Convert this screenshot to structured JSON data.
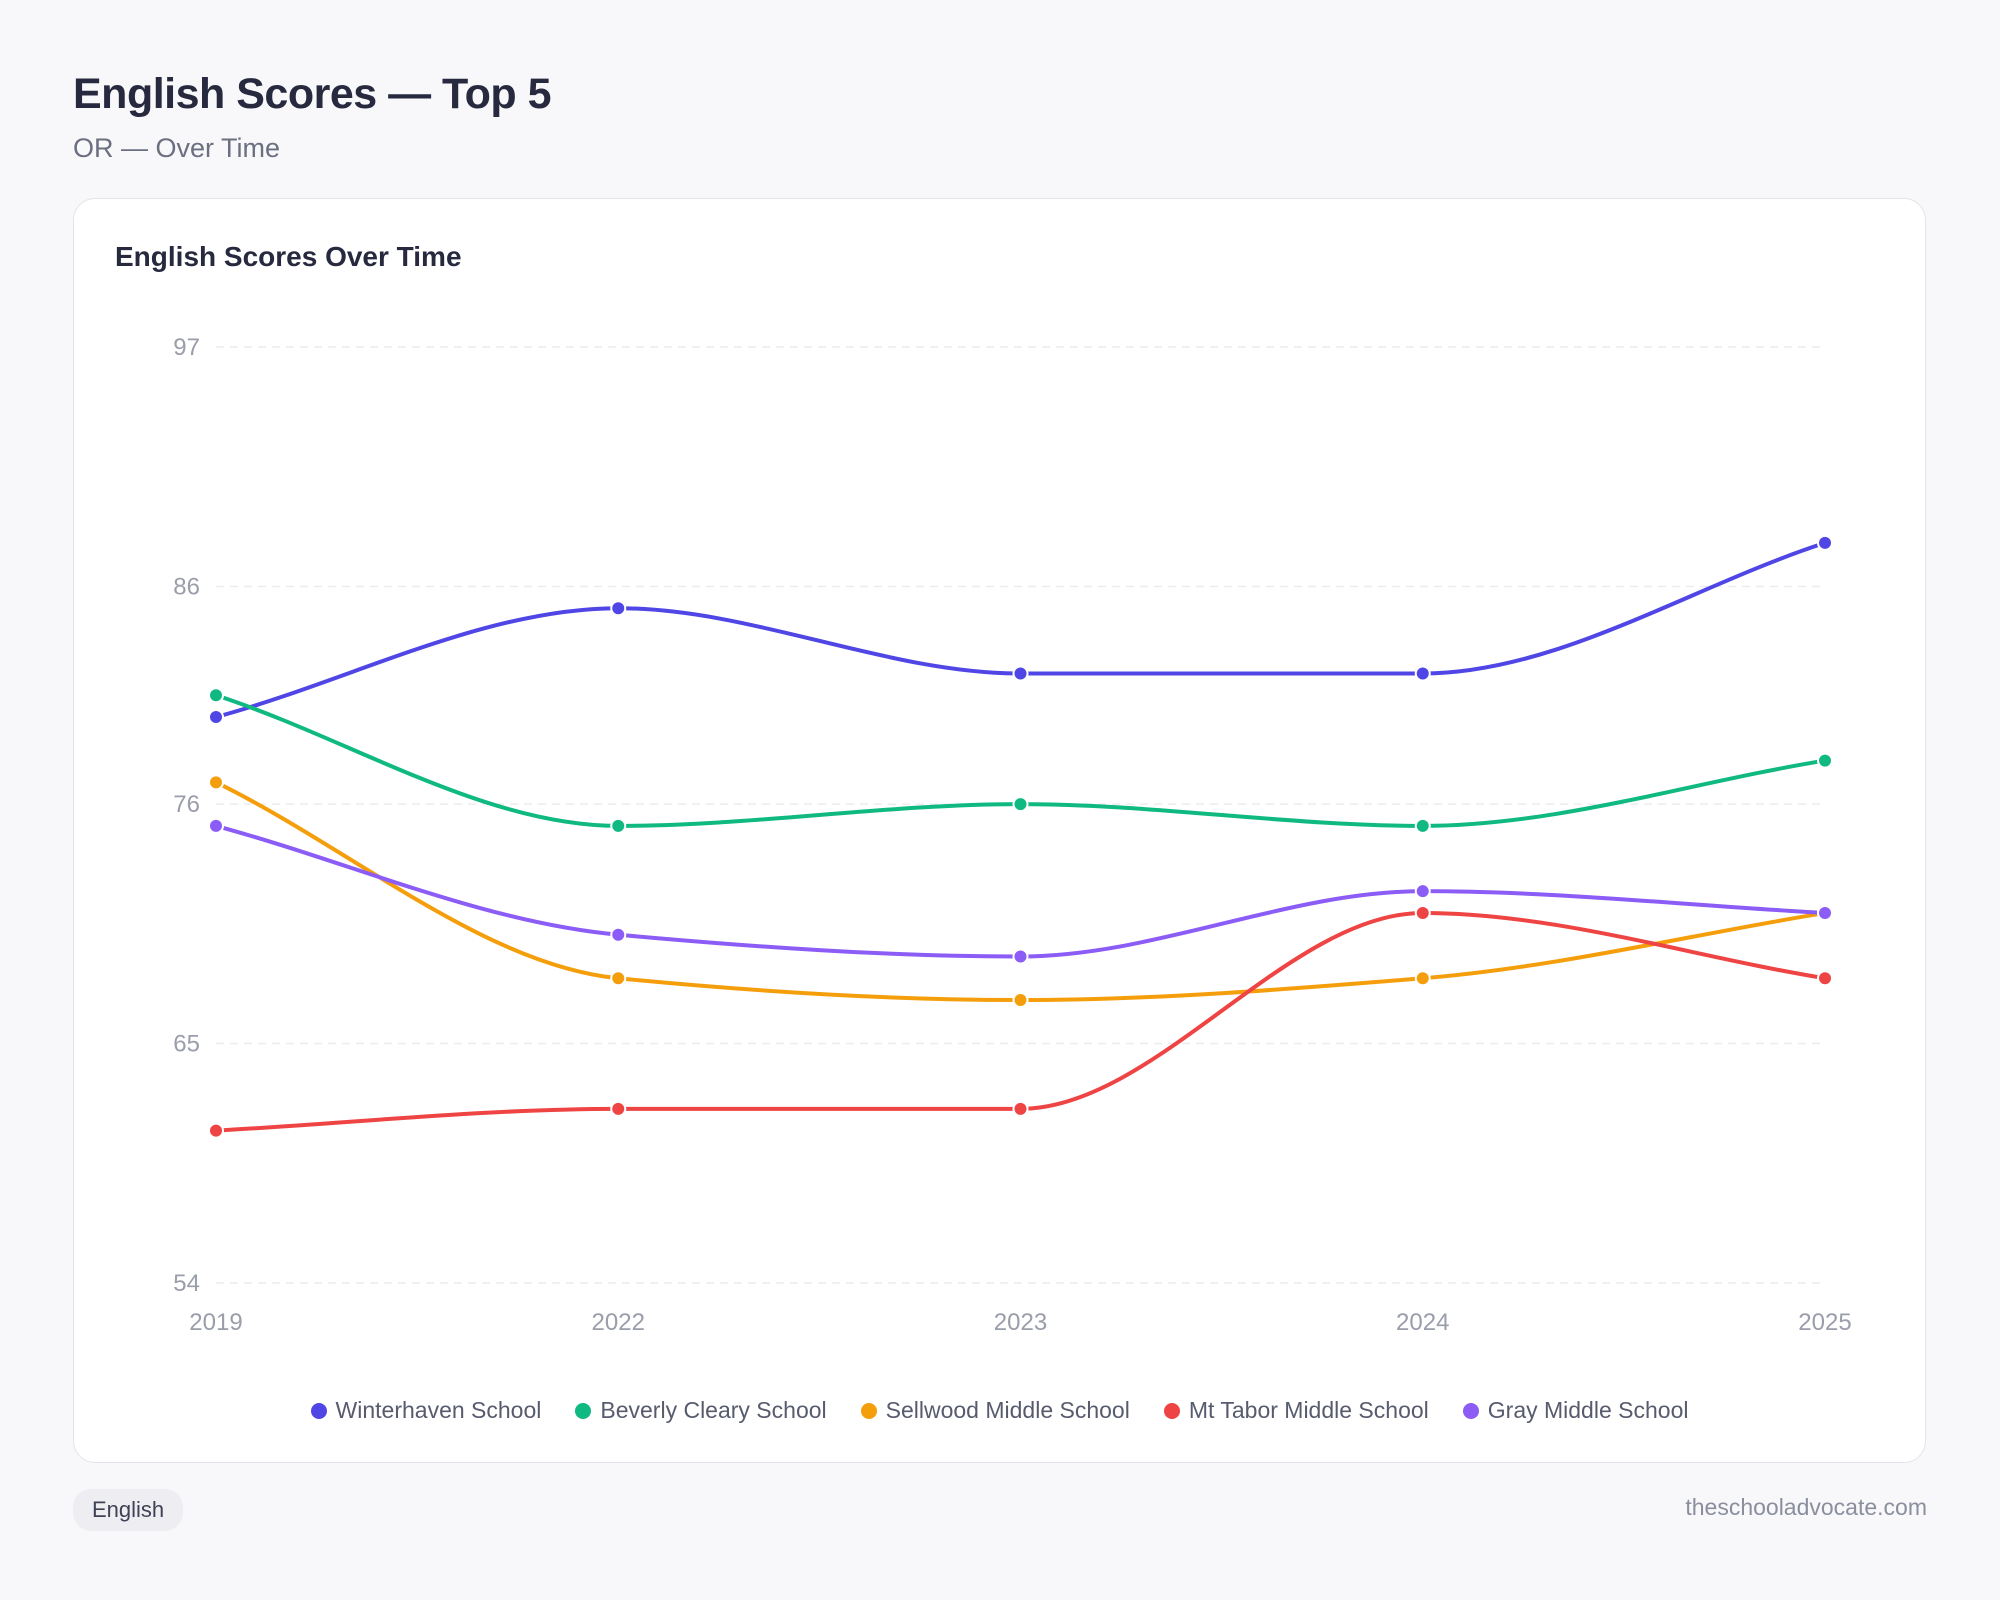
{
  "header": {
    "title": "English Scores — Top 5",
    "subtitle": "OR — Over Time"
  },
  "card": {
    "title": "English Scores Over Time"
  },
  "colors": {
    "grid": "#ececf0",
    "tick_text": "#9a9daa",
    "Winterhaven School": "#4f46e5",
    "Beverly Cleary School": "#10b981",
    "Sellwood Middle School": "#f59e0b",
    "Mt Tabor Middle School": "#ef4444",
    "Gray Middle School": "#8b5cf6"
  },
  "chart_data": {
    "type": "line",
    "title": "English Scores Over Time",
    "xlabel": "",
    "ylabel": "",
    "x": [
      "2019",
      "2022",
      "2023",
      "2024",
      "2025"
    ],
    "ylim": [
      54,
      97
    ],
    "yticks": [
      97,
      86,
      76,
      65,
      54
    ],
    "grid": true,
    "legend_position": "bottom",
    "series": [
      {
        "name": "Winterhaven School",
        "color": "#4f46e5",
        "values": [
          80,
          85,
          82,
          82,
          88
        ]
      },
      {
        "name": "Beverly Cleary School",
        "color": "#10b981",
        "values": [
          81,
          75,
          76,
          75,
          78
        ]
      },
      {
        "name": "Sellwood Middle School",
        "color": "#f59e0b",
        "values": [
          77,
          68,
          67,
          68,
          71
        ]
      },
      {
        "name": "Mt Tabor Middle School",
        "color": "#ef4444",
        "values": [
          61,
          62,
          62,
          71,
          68
        ]
      },
      {
        "name": "Gray Middle School",
        "color": "#8b5cf6",
        "values": [
          75,
          70,
          69,
          72,
          71
        ]
      }
    ]
  },
  "footer": {
    "subject_chip": "English",
    "site": "theschooladvocate.com"
  }
}
